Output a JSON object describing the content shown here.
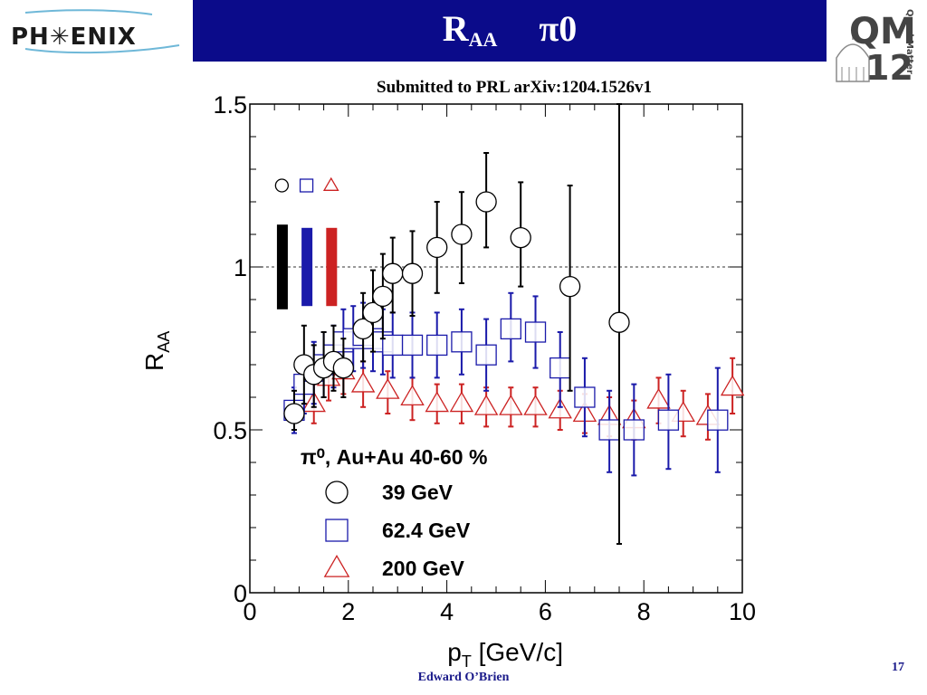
{
  "header": {
    "logo_text": "PH✳ENIX",
    "title_main": "R",
    "title_sub": "AA",
    "title_particle": "π0",
    "conference_logo_top": "QM",
    "conference_logo_num": "12",
    "conference_logo_side": "QuarkMatter"
  },
  "subtitle": "Submitted to PRL arXiv:1204.1526v1",
  "footer": {
    "author": "Edward O’Brien",
    "page": "17"
  },
  "colors": {
    "title_bar": "#0b0b8a",
    "s39": "#000000",
    "s62": "#1a1aaa",
    "s200": "#cc2222"
  },
  "chart_data": {
    "type": "scatter",
    "xlabel": "p",
    "xlabel_sub": "T",
    "xlabel_unit": " [GeV/c]",
    "ylabel": "R",
    "ylabel_sub": "AA",
    "xlim": [
      0,
      10
    ],
    "ylim": [
      0,
      1.5
    ],
    "x_ticks": [
      "0",
      "2",
      "4",
      "6",
      "8",
      "10"
    ],
    "y_ticks": [
      "0",
      "0.5",
      "1",
      "1.5"
    ],
    "reference_line": 1.0,
    "legend_title": "π⁰, Au+Au 40-60 %",
    "legend_placement": "lower-left",
    "series": [
      {
        "name": "39 GeV",
        "marker": "circle",
        "color": "#000000",
        "global_uncertainty": [
          0.87,
          1.13
        ],
        "points": [
          {
            "x": 0.9,
            "y": 0.55,
            "lo": 0.5,
            "hi": 0.62
          },
          {
            "x": 1.1,
            "y": 0.7,
            "lo": 0.58,
            "hi": 0.82
          },
          {
            "x": 1.3,
            "y": 0.67,
            "lo": 0.57,
            "hi": 0.76
          },
          {
            "x": 1.5,
            "y": 0.69,
            "lo": 0.6,
            "hi": 0.8
          },
          {
            "x": 1.7,
            "y": 0.71,
            "lo": 0.62,
            "hi": 0.82
          },
          {
            "x": 1.9,
            "y": 0.69,
            "lo": 0.6,
            "hi": 0.78
          },
          {
            "x": 2.3,
            "y": 0.81,
            "lo": 0.71,
            "hi": 0.92
          },
          {
            "x": 2.5,
            "y": 0.86,
            "lo": 0.74,
            "hi": 0.99
          },
          {
            "x": 2.7,
            "y": 0.91,
            "lo": 0.78,
            "hi": 1.04
          },
          {
            "x": 2.9,
            "y": 0.98,
            "lo": 0.86,
            "hi": 1.09
          },
          {
            "x": 3.3,
            "y": 0.98,
            "lo": 0.85,
            "hi": 1.11
          },
          {
            "x": 3.8,
            "y": 1.06,
            "lo": 0.92,
            "hi": 1.2
          },
          {
            "x": 4.3,
            "y": 1.1,
            "lo": 0.95,
            "hi": 1.23
          },
          {
            "x": 4.8,
            "y": 1.2,
            "lo": 1.06,
            "hi": 1.35
          },
          {
            "x": 5.5,
            "y": 1.09,
            "lo": 0.94,
            "hi": 1.26
          },
          {
            "x": 6.5,
            "y": 0.94,
            "lo": 0.62,
            "hi": 1.25
          },
          {
            "x": 7.5,
            "y": 0.83,
            "lo": 0.15,
            "hi": 1.5
          }
        ]
      },
      {
        "name": "62.4 GeV",
        "marker": "square",
        "color": "#1a1aaa",
        "global_uncertainty": [
          0.88,
          1.12
        ],
        "points": [
          {
            "x": 0.9,
            "y": 0.56,
            "lo": 0.49,
            "hi": 0.63
          },
          {
            "x": 1.1,
            "y": 0.64,
            "lo": 0.55,
            "hi": 0.72
          },
          {
            "x": 1.3,
            "y": 0.68,
            "lo": 0.58,
            "hi": 0.77
          },
          {
            "x": 1.5,
            "y": 0.7,
            "lo": 0.6,
            "hi": 0.8
          },
          {
            "x": 1.7,
            "y": 0.73,
            "lo": 0.63,
            "hi": 0.82
          },
          {
            "x": 1.9,
            "y": 0.77,
            "lo": 0.67,
            "hi": 0.87
          },
          {
            "x": 2.1,
            "y": 0.78,
            "lo": 0.68,
            "hi": 0.88
          },
          {
            "x": 2.3,
            "y": 0.79,
            "lo": 0.69,
            "hi": 0.89
          },
          {
            "x": 2.5,
            "y": 0.78,
            "lo": 0.68,
            "hi": 0.88
          },
          {
            "x": 2.7,
            "y": 0.77,
            "lo": 0.67,
            "hi": 0.87
          },
          {
            "x": 2.9,
            "y": 0.76,
            "lo": 0.66,
            "hi": 0.86
          },
          {
            "x": 3.3,
            "y": 0.76,
            "lo": 0.66,
            "hi": 0.86
          },
          {
            "x": 3.8,
            "y": 0.76,
            "lo": 0.66,
            "hi": 0.86
          },
          {
            "x": 4.3,
            "y": 0.77,
            "lo": 0.67,
            "hi": 0.87
          },
          {
            "x": 4.8,
            "y": 0.73,
            "lo": 0.62,
            "hi": 0.84
          },
          {
            "x": 5.3,
            "y": 0.81,
            "lo": 0.71,
            "hi": 0.92
          },
          {
            "x": 5.8,
            "y": 0.8,
            "lo": 0.69,
            "hi": 0.91
          },
          {
            "x": 6.3,
            "y": 0.69,
            "lo": 0.57,
            "hi": 0.8
          },
          {
            "x": 6.8,
            "y": 0.6,
            "lo": 0.48,
            "hi": 0.72
          },
          {
            "x": 7.3,
            "y": 0.5,
            "lo": 0.37,
            "hi": 0.62
          },
          {
            "x": 7.8,
            "y": 0.5,
            "lo": 0.36,
            "hi": 0.64
          },
          {
            "x": 8.5,
            "y": 0.53,
            "lo": 0.38,
            "hi": 0.67
          },
          {
            "x": 9.5,
            "y": 0.53,
            "lo": 0.37,
            "hi": 0.69
          }
        ]
      },
      {
        "name": "200 GeV",
        "marker": "triangle",
        "color": "#cc2222",
        "global_uncertainty": [
          0.88,
          1.12
        ],
        "points": [
          {
            "x": 1.3,
            "y": 0.58,
            "lo": 0.52,
            "hi": 0.64
          },
          {
            "x": 1.6,
            "y": 0.66,
            "lo": 0.59,
            "hi": 0.73
          },
          {
            "x": 1.9,
            "y": 0.68,
            "lo": 0.61,
            "hi": 0.75
          },
          {
            "x": 2.3,
            "y": 0.64,
            "lo": 0.57,
            "hi": 0.71
          },
          {
            "x": 2.8,
            "y": 0.62,
            "lo": 0.55,
            "hi": 0.68
          },
          {
            "x": 3.3,
            "y": 0.6,
            "lo": 0.53,
            "hi": 0.66
          },
          {
            "x": 3.8,
            "y": 0.58,
            "lo": 0.52,
            "hi": 0.64
          },
          {
            "x": 4.3,
            "y": 0.58,
            "lo": 0.52,
            "hi": 0.64
          },
          {
            "x": 4.8,
            "y": 0.57,
            "lo": 0.51,
            "hi": 0.63
          },
          {
            "x": 5.3,
            "y": 0.57,
            "lo": 0.51,
            "hi": 0.63
          },
          {
            "x": 5.8,
            "y": 0.57,
            "lo": 0.51,
            "hi": 0.63
          },
          {
            "x": 6.3,
            "y": 0.56,
            "lo": 0.5,
            "hi": 0.62
          },
          {
            "x": 6.8,
            "y": 0.55,
            "lo": 0.49,
            "hi": 0.61
          },
          {
            "x": 7.3,
            "y": 0.54,
            "lo": 0.48,
            "hi": 0.6
          },
          {
            "x": 7.8,
            "y": 0.53,
            "lo": 0.47,
            "hi": 0.59
          },
          {
            "x": 8.3,
            "y": 0.59,
            "lo": 0.52,
            "hi": 0.66
          },
          {
            "x": 8.8,
            "y": 0.55,
            "lo": 0.48,
            "hi": 0.62
          },
          {
            "x": 9.3,
            "y": 0.54,
            "lo": 0.47,
            "hi": 0.61
          },
          {
            "x": 9.8,
            "y": 0.63,
            "lo": 0.55,
            "hi": 0.72
          }
        ]
      }
    ]
  }
}
